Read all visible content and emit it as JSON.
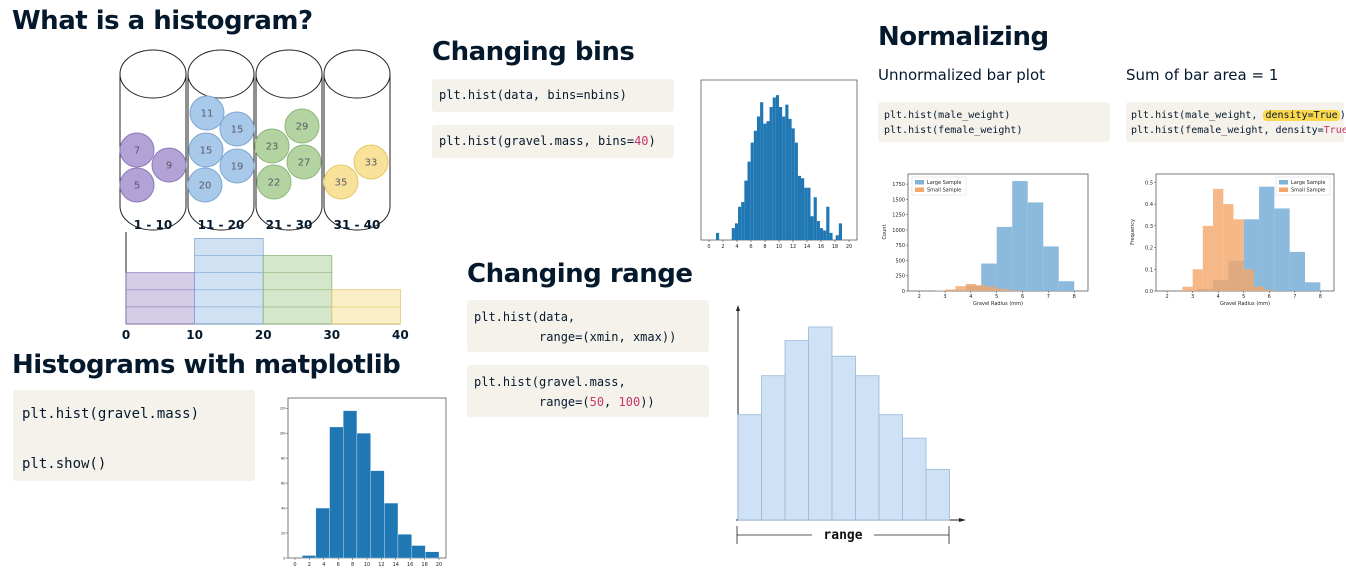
{
  "sections": {
    "what_is": {
      "title": "What is a histogram?"
    },
    "changing_bins": {
      "title": "Changing bins"
    },
    "normalizing": {
      "title": "Normalizing",
      "left_label": "Unnormalized bar plot",
      "right_label": "Sum of bar area = 1"
    },
    "changing_range": {
      "title": "Changing range"
    },
    "with_matplotlib": {
      "title": "Histograms with matplotlib"
    }
  },
  "code": {
    "bins_1": "plt.hist(data, bins=nbins)",
    "bins_2_pre": "plt.hist(gravel.mass, bins=",
    "bins_2_num": "40",
    "bins_2_post": ")",
    "range_1_a": "plt.hist(data,",
    "range_1_b": "         range=(xmin, xmax))",
    "range_2_a": "plt.hist(gravel.mass,",
    "range_2_b_pre": "         range=(",
    "range_2_num1": "50",
    "range_2_sep": ", ",
    "range_2_num2": "100",
    "range_2_b_post": "))",
    "norm_left_1": "plt.hist(male_weight)",
    "norm_left_2": "plt.hist(female_weight)",
    "norm_right_1_pre": "plt.hist(male_weight, ",
    "norm_right_1_hl": "density=True",
    "norm_right_1_post": ")",
    "norm_right_2_pre": "plt.hist(female_weight, density=",
    "norm_right_2_val": "True",
    "norm_right_2_post": ")",
    "mpl_1": "plt.hist(gravel.mass)",
    "mpl_2": "plt.show()"
  },
  "colors": {
    "purple": "#b3a2d6",
    "blue": "#a9c9ea",
    "green": "#b3d4a1",
    "yellow": "#f8e29a",
    "mpl_blue": "#1f77b4",
    "large_sample": "#7fb2d8",
    "small_sample": "#f5a66a",
    "light_bar": "#cfe1f4"
  },
  "illustration": {
    "bin_labels": [
      "1 - 10",
      "11 - 20",
      "21 - 30",
      "31 - 40"
    ],
    "balls": [
      {
        "n": "7",
        "bin": 0
      },
      {
        "n": "9",
        "bin": 0
      },
      {
        "n": "5",
        "bin": 0
      },
      {
        "n": "11",
        "bin": 1
      },
      {
        "n": "15",
        "bin": 1
      },
      {
        "n": "15",
        "bin": 1
      },
      {
        "n": "19",
        "bin": 1
      },
      {
        "n": "20",
        "bin": 1
      },
      {
        "n": "29",
        "bin": 2
      },
      {
        "n": "23",
        "bin": 2
      },
      {
        "n": "27",
        "bin": 2
      },
      {
        "n": "22",
        "bin": 2
      },
      {
        "n": "33",
        "bin": 3
      },
      {
        "n": "35",
        "bin": 3
      }
    ],
    "axis_ticks": [
      "0",
      "10",
      "20",
      "30",
      "40"
    ],
    "counts": [
      3,
      5,
      4,
      2
    ]
  },
  "chart_data": [
    {
      "id": "bins40",
      "type": "bar",
      "x_ticks": [
        "0",
        "2",
        "4",
        "6",
        "8",
        "10",
        "12",
        "14",
        "16",
        "18",
        "20"
      ],
      "xlim": [
        0,
        20
      ],
      "bin_edges_start": 1.0,
      "bin_width": 0.45,
      "values": [
        3,
        0,
        0,
        0,
        0,
        5,
        7,
        14,
        16,
        25,
        33,
        41,
        46,
        52,
        58,
        49,
        50,
        56,
        60,
        61,
        56,
        52,
        57,
        51,
        47,
        41,
        27,
        26,
        22,
        22,
        10,
        18,
        8,
        5,
        4,
        14,
        3,
        0,
        2,
        7
      ],
      "ylim": [
        0,
        64
      ]
    },
    {
      "id": "unnormalized",
      "type": "bar",
      "x_ticks": [
        "2",
        "3",
        "4",
        "5",
        "6",
        "7",
        "8"
      ],
      "y_ticks": [
        "0",
        "250",
        "500",
        "750",
        "1000",
        "1250",
        "1500",
        "1750"
      ],
      "xlabel": "Gravel Radius (mm)",
      "ylabel": "Count",
      "xlim": [
        1.8,
        8.3
      ],
      "ylim": [
        0,
        1850
      ],
      "legend": "top-left",
      "series": [
        {
          "name": "Large Sample",
          "edges": [
            2.6,
            3.2,
            3.8,
            4.4,
            5.0,
            5.6,
            6.2,
            6.8,
            7.4,
            8.0
          ],
          "values": [
            5,
            20,
            90,
            450,
            1050,
            1800,
            1450,
            730,
            160
          ]
        },
        {
          "name": "Small Sample",
          "edges": [
            2.6,
            3.0,
            3.4,
            3.8,
            4.2,
            4.6,
            5.0,
            5.4,
            5.8,
            6.2
          ],
          "values": [
            5,
            25,
            80,
            115,
            95,
            70,
            35,
            15,
            5
          ]
        }
      ]
    },
    {
      "id": "normalized",
      "type": "bar",
      "x_ticks": [
        "2",
        "3",
        "4",
        "5",
        "6",
        "7",
        "8"
      ],
      "y_ticks": [
        "0.0",
        "0.1",
        "0.2",
        "0.3",
        "0.4",
        "0.5"
      ],
      "xlabel": "Gravel Radius (mm)",
      "ylabel": "Frequency",
      "xlim": [
        1.8,
        8.3
      ],
      "ylim": [
        0,
        0.52
      ],
      "legend": "top-right",
      "series": [
        {
          "name": "Large Sample",
          "edges": [
            2.6,
            3.2,
            3.8,
            4.4,
            5.0,
            5.6,
            6.2,
            6.8,
            7.4,
            8.0
          ],
          "values": [
            0.003,
            0.01,
            0.05,
            0.14,
            0.33,
            0.48,
            0.38,
            0.18,
            0.04
          ]
        },
        {
          "name": "Small Sample",
          "edges": [
            2.6,
            3.0,
            3.4,
            3.8,
            4.2,
            4.6,
            5.0,
            5.4,
            5.8,
            6.2
          ],
          "values": [
            0.02,
            0.1,
            0.3,
            0.47,
            0.4,
            0.33,
            0.1,
            0.02,
            0.005
          ]
        }
      ]
    },
    {
      "id": "range_demo",
      "type": "bar",
      "values": [
        0.54,
        0.74,
        0.92,
        0.99,
        0.84,
        0.74,
        0.54,
        0.42,
        0.26
      ],
      "range_label": "range"
    },
    {
      "id": "default10",
      "type": "bar",
      "x_ticks": [
        "0",
        "2",
        "4",
        "6",
        "8",
        "10",
        "12",
        "14",
        "16",
        "18",
        "20"
      ],
      "xlim": [
        0,
        20
      ],
      "bin_edges": [
        1.0,
        2.9,
        4.8,
        6.7,
        8.6,
        10.5,
        12.4,
        14.3,
        16.2,
        18.1,
        20.0
      ],
      "values": [
        2,
        40,
        105,
        118,
        100,
        70,
        44,
        19,
        10,
        5
      ],
      "y_ticks": [
        "0",
        "20",
        "40",
        "60",
        "80",
        "100",
        "120"
      ],
      "ylim": [
        0,
        125
      ]
    }
  ]
}
